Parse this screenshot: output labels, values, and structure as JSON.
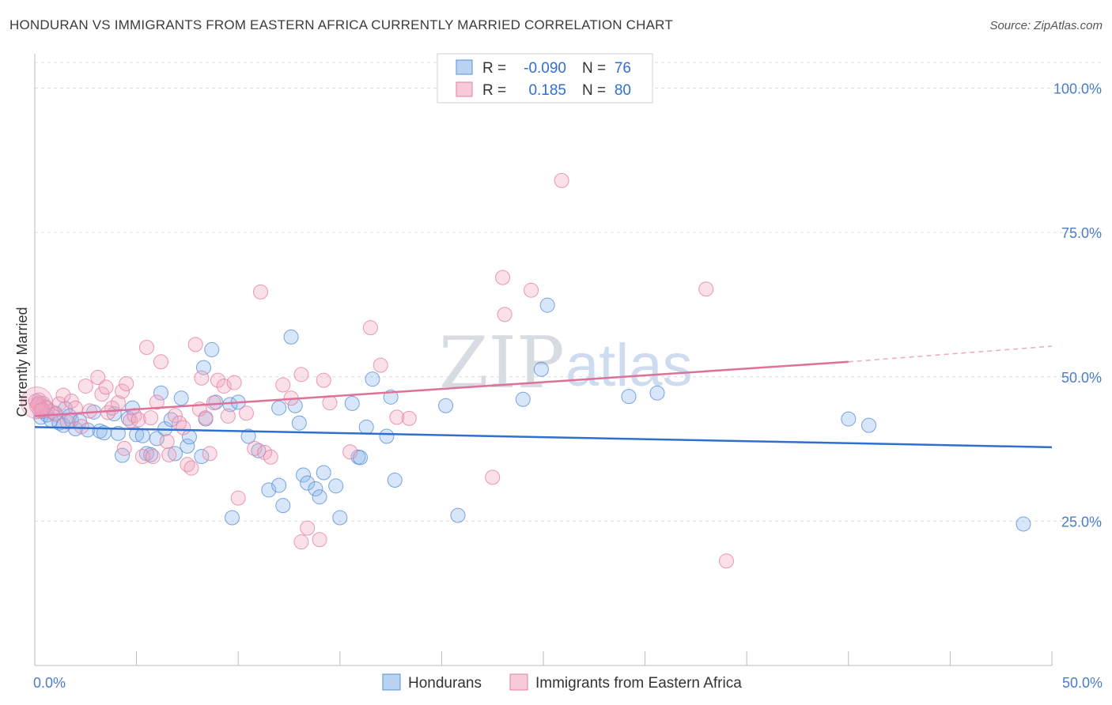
{
  "title": "HONDURAN VS IMMIGRANTS FROM EASTERN AFRICA CURRENTLY MARRIED CORRELATION CHART",
  "source": "Source: ZipAtlas.com",
  "watermark": {
    "zip": "ZIP",
    "atlas": "atlas"
  },
  "chart_data": {
    "type": "scatter",
    "xlabel": "",
    "ylabel": "Currently Married",
    "xlim": [
      0,
      50
    ],
    "ylim": [
      0,
      105
    ],
    "x_tick_labels": [
      {
        "value": 0,
        "label": "0.0%"
      },
      {
        "value": 50,
        "label": "50.0%"
      }
    ],
    "y_tick_labels": [
      {
        "value": 25,
        "label": "25.0%"
      },
      {
        "value": 50,
        "label": "50.0%"
      },
      {
        "value": 75,
        "label": "75.0%"
      },
      {
        "value": 100,
        "label": "100.0%"
      }
    ],
    "grid": true,
    "legend_top": [
      {
        "r_label": "R = ",
        "r_value": "-0.090",
        "n_label": "N = ",
        "n_value": "76",
        "color": "#8db6ea"
      },
      {
        "r_label": "R = ",
        "r_value": "0.185",
        "n_label": "N = ",
        "n_value": "80",
        "color": "#f2a7c0"
      }
    ],
    "series": [
      {
        "name": "Hondurans",
        "color": "#8db6ea",
        "stroke": "#5b8fd6",
        "trend": {
          "x": [
            0,
            50
          ],
          "y": [
            41.3,
            37.8
          ],
          "color": "#2f6fd0"
        },
        "points": [
          [
            0.2,
            45.5
          ],
          [
            0.3,
            43
          ],
          [
            0.4,
            44
          ],
          [
            0.5,
            44.8
          ],
          [
            0.6,
            43.4
          ],
          [
            0.8,
            42.5
          ],
          [
            1.0,
            43.7
          ],
          [
            1.2,
            42
          ],
          [
            1.4,
            41.6
          ],
          [
            1.5,
            44.5
          ],
          [
            1.7,
            43.2
          ],
          [
            1.8,
            42.5
          ],
          [
            2.0,
            41
          ],
          [
            2.2,
            42.3
          ],
          [
            2.6,
            40.8
          ],
          [
            2.9,
            43.9
          ],
          [
            3.2,
            40.6
          ],
          [
            3.4,
            40.3
          ],
          [
            3.9,
            43.6
          ],
          [
            4.1,
            40.2
          ],
          [
            4.3,
            36.4
          ],
          [
            4.6,
            42.8
          ],
          [
            4.8,
            44.6
          ],
          [
            5.0,
            40
          ],
          [
            5.3,
            39.8
          ],
          [
            5.5,
            36.7
          ],
          [
            5.7,
            36.5
          ],
          [
            6.0,
            39.3
          ],
          [
            6.2,
            47.2
          ],
          [
            6.4,
            41
          ],
          [
            6.7,
            42.6
          ],
          [
            6.9,
            36.7
          ],
          [
            7.2,
            46.3
          ],
          [
            7.5,
            38
          ],
          [
            7.6,
            39.6
          ],
          [
            8.2,
            36.2
          ],
          [
            8.3,
            51.6
          ],
          [
            8.4,
            42.7
          ],
          [
            8.7,
            54.7
          ],
          [
            8.9,
            45.6
          ],
          [
            9.6,
            45.2
          ],
          [
            10.0,
            45.6
          ],
          [
            11.0,
            37.2
          ],
          [
            10.5,
            39.7
          ],
          [
            9.7,
            25.6
          ],
          [
            11.5,
            30.4
          ],
          [
            12.0,
            31.2
          ],
          [
            12.2,
            27.7
          ],
          [
            12.0,
            44.6
          ],
          [
            12.8,
            45
          ],
          [
            12.6,
            56.9
          ],
          [
            13.0,
            42
          ],
          [
            13.2,
            33
          ],
          [
            13.4,
            31.6
          ],
          [
            13.8,
            30.6
          ],
          [
            14.0,
            29.2
          ],
          [
            14.2,
            33.4
          ],
          [
            14.8,
            31.1
          ],
          [
            15.0,
            25.6
          ],
          [
            15.6,
            45.4
          ],
          [
            16.3,
            41.3
          ],
          [
            16.6,
            49.6
          ],
          [
            17.3,
            39.7
          ],
          [
            17.5,
            46.5
          ],
          [
            17.7,
            32.1
          ],
          [
            15.9,
            36.1
          ],
          [
            16.0,
            36
          ],
          [
            20.2,
            45
          ],
          [
            20.8,
            26
          ],
          [
            24.0,
            46.1
          ],
          [
            24.9,
            51.3
          ],
          [
            25.2,
            62.4
          ],
          [
            29.2,
            46.6
          ],
          [
            30.6,
            47.2
          ],
          [
            40.0,
            42.7
          ],
          [
            41.0,
            41.6
          ],
          [
            48.6,
            24.5
          ]
        ]
      },
      {
        "name": "Immigrants from Eastern Africa",
        "color": "#f2a7c0",
        "stroke": "#e67fa2",
        "trend": {
          "x": [
            0,
            40
          ],
          "y": [
            43.2,
            52.6
          ],
          "dash_x": [
            40,
            50
          ],
          "dash_y": [
            52.6,
            55.3
          ],
          "color": "#e0709a"
        },
        "points": [
          [
            0.2,
            46
          ],
          [
            0.3,
            44.8
          ],
          [
            0.4,
            45.4
          ],
          [
            0.6,
            44.6
          ],
          [
            0.8,
            44
          ],
          [
            1.0,
            43.5
          ],
          [
            1.2,
            45.3
          ],
          [
            1.4,
            46.8
          ],
          [
            1.6,
            42.2
          ],
          [
            1.8,
            45.8
          ],
          [
            2.0,
            44.6
          ],
          [
            2.3,
            41.4
          ],
          [
            2.5,
            48.4
          ],
          [
            2.7,
            44.1
          ],
          [
            3.1,
            49.9
          ],
          [
            3.3,
            47
          ],
          [
            3.5,
            48.2
          ],
          [
            3.6,
            43.8
          ],
          [
            3.8,
            44.6
          ],
          [
            4.1,
            45.5
          ],
          [
            4.3,
            47.5
          ],
          [
            4.4,
            37.6
          ],
          [
            4.5,
            48.8
          ],
          [
            4.7,
            42.4
          ],
          [
            4.9,
            43.3
          ],
          [
            5.1,
            42.6
          ],
          [
            5.3,
            36.2
          ],
          [
            5.5,
            55.1
          ],
          [
            5.7,
            42.9
          ],
          [
            5.8,
            36.2
          ],
          [
            6.0,
            45.6
          ],
          [
            6.2,
            52.6
          ],
          [
            6.5,
            38.8
          ],
          [
            6.6,
            36.5
          ],
          [
            6.9,
            43.3
          ],
          [
            7.1,
            42
          ],
          [
            7.3,
            41.2
          ],
          [
            7.5,
            34.8
          ],
          [
            7.7,
            34.2
          ],
          [
            7.9,
            55.6
          ],
          [
            8.1,
            44.4
          ],
          [
            8.2,
            49.8
          ],
          [
            8.4,
            42.9
          ],
          [
            8.6,
            36.7
          ],
          [
            8.8,
            45.5
          ],
          [
            9.0,
            49.4
          ],
          [
            9.3,
            48.4
          ],
          [
            9.5,
            43.2
          ],
          [
            9.8,
            49
          ],
          [
            10.0,
            29
          ],
          [
            10.4,
            43.7
          ],
          [
            10.8,
            37.6
          ],
          [
            11.1,
            64.7
          ],
          [
            11.3,
            36.9
          ],
          [
            11.6,
            36.1
          ],
          [
            12.2,
            48.6
          ],
          [
            12.6,
            46.3
          ],
          [
            13.1,
            50.4
          ],
          [
            13.1,
            21.4
          ],
          [
            13.4,
            23.8
          ],
          [
            14.0,
            21.8
          ],
          [
            14.2,
            49.4
          ],
          [
            14.5,
            45.5
          ],
          [
            15.5,
            37
          ],
          [
            16.5,
            58.5
          ],
          [
            17.0,
            52
          ],
          [
            17.8,
            43
          ],
          [
            18.4,
            42.8
          ],
          [
            22.5,
            32.6
          ],
          [
            23.0,
            67.2
          ],
          [
            23.1,
            60.8
          ],
          [
            24.4,
            65
          ],
          [
            25.9,
            84
          ],
          [
            33.0,
            65.2
          ],
          [
            34.0,
            18.1
          ],
          [
            0.05,
            45.8
          ],
          [
            0.1,
            44.9
          ],
          [
            0.15,
            45.2
          ],
          [
            0.25,
            44.1
          ],
          [
            0.35,
            44.3
          ]
        ]
      }
    ]
  },
  "legend_bottom": [
    {
      "label": "Hondurans",
      "color": "#8db6ea"
    },
    {
      "label": "Immigrants from Eastern Africa",
      "color": "#f2a7c0"
    }
  ]
}
